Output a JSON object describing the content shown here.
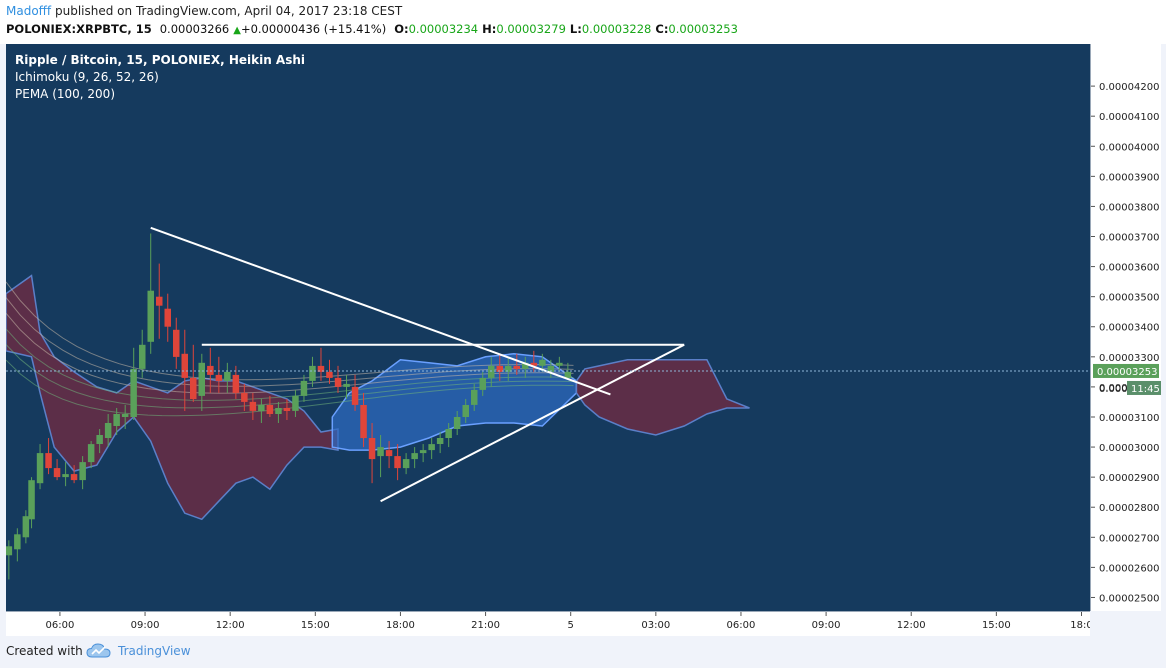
{
  "header": {
    "author": "Madofff",
    "published": "published on TradingView.com, April 04, 2017 23:18 CEST",
    "symbol": "POLONIEX:XRPBTC, 15",
    "last": "0.00003266",
    "arrow": "▲",
    "change": "+0.00000436 (+15.41%)",
    "o_label": "O:",
    "o_value": "0.00003234",
    "h_label": "H:",
    "h_value": "0.00003279",
    "l_label": "L:",
    "l_value": "0.00003228",
    "c_label": "C:",
    "c_value": "0.00003253"
  },
  "legend": {
    "title": "Ripple / Bitcoin, 15, POLONIEX, Heikin Ashi",
    "ichimoku": "Ichimoku (9, 26, 52, 26)",
    "pema": "PEMA (100, 200)"
  },
  "footer": {
    "created": "Created with",
    "brand": "TradingView"
  },
  "colors": {
    "background": "#153a5e",
    "up": "#5aa05a",
    "down": "#e0453a",
    "cloud_bear": "#7a2a3e",
    "cloud_bull": "#2d6cc4",
    "trendline": "#ffffff"
  },
  "chart_data": {
    "type": "candlestick",
    "style": "Heikin Ashi",
    "y_ticks": [
      "0.00004200",
      "0.00004100",
      "0.00004000",
      "0.00003900",
      "0.00003800",
      "0.00003700",
      "0.00003600",
      "0.00003500",
      "0.00003400",
      "0.00003300",
      "0.00003200",
      "0.00003100",
      "0.00003000",
      "0.00002900",
      "0.00002800",
      "0.00002700",
      "0.00002600",
      "0.00002500"
    ],
    "y_tick_values": [
      4.2e-05,
      4.1e-05,
      4e-05,
      3.9e-05,
      3.8e-05,
      3.7e-05,
      3.6e-05,
      3.5e-05,
      3.4e-05,
      3.3e-05,
      3.2e-05,
      3.1e-05,
      3e-05,
      2.9e-05,
      2.8e-05,
      2.7e-05,
      2.6e-05,
      2.5e-05
    ],
    "current_price_label": "0.00003253",
    "current_price": 3.253e-05,
    "countdown_prefix": "0.000",
    "countdown": "11:45",
    "x_ticks": [
      "06:00",
      "09:00",
      "12:00",
      "15:00",
      "18:00",
      "21:00",
      "5",
      "03:00",
      "06:00",
      "09:00",
      "12:00",
      "15:00",
      "18:0"
    ],
    "x_tick_hours": [
      6,
      9,
      12,
      15,
      18,
      21,
      24,
      27,
      30,
      33,
      36,
      39,
      42
    ],
    "x_range_hours": [
      4.1,
      42.3
    ],
    "y_range": [
      2.455e-05,
      4.34e-05
    ],
    "candles": [
      {
        "t": 4.2,
        "o": 2.64e-05,
        "h": 2.69e-05,
        "l": 2.56e-05,
        "c": 2.67e-05
      },
      {
        "t": 4.5,
        "o": 2.66e-05,
        "h": 2.73e-05,
        "l": 2.62e-05,
        "c": 2.71e-05
      },
      {
        "t": 4.8,
        "o": 2.7e-05,
        "h": 2.79e-05,
        "l": 2.68e-05,
        "c": 2.77e-05
      },
      {
        "t": 5.0,
        "o": 2.76e-05,
        "h": 2.9e-05,
        "l": 2.73e-05,
        "c": 2.89e-05
      },
      {
        "t": 5.3,
        "o": 2.88e-05,
        "h": 3.01e-05,
        "l": 2.86e-05,
        "c": 2.98e-05
      },
      {
        "t": 5.6,
        "o": 2.98e-05,
        "h": 3.03e-05,
        "l": 2.91e-05,
        "c": 2.93e-05
      },
      {
        "t": 5.9,
        "o": 2.93e-05,
        "h": 2.96e-05,
        "l": 2.89e-05,
        "c": 2.9e-05
      },
      {
        "t": 6.2,
        "o": 2.9e-05,
        "h": 2.95e-05,
        "l": 2.87e-05,
        "c": 2.91e-05
      },
      {
        "t": 6.5,
        "o": 2.91e-05,
        "h": 2.94e-05,
        "l": 2.88e-05,
        "c": 2.89e-05
      },
      {
        "t": 6.8,
        "o": 2.89e-05,
        "h": 2.97e-05,
        "l": 2.86e-05,
        "c": 2.95e-05
      },
      {
        "t": 7.1,
        "o": 2.95e-05,
        "h": 3.02e-05,
        "l": 2.93e-05,
        "c": 3.01e-05
      },
      {
        "t": 7.4,
        "o": 3.01e-05,
        "h": 3.06e-05,
        "l": 2.98e-05,
        "c": 3.04e-05
      },
      {
        "t": 7.7,
        "o": 3.03e-05,
        "h": 3.11e-05,
        "l": 3e-05,
        "c": 3.08e-05
      },
      {
        "t": 8.0,
        "o": 3.07e-05,
        "h": 3.13e-05,
        "l": 3.04e-05,
        "c": 3.11e-05
      },
      {
        "t": 8.3,
        "o": 3.1e-05,
        "h": 3.14e-05,
        "l": 3.06e-05,
        "c": 3.11e-05
      },
      {
        "t": 8.6,
        "o": 3.1e-05,
        "h": 3.33e-05,
        "l": 3.09e-05,
        "c": 3.26e-05
      },
      {
        "t": 8.9,
        "o": 3.26e-05,
        "h": 3.39e-05,
        "l": 3.23e-05,
        "c": 3.34e-05
      },
      {
        "t": 9.2,
        "o": 3.35e-05,
        "h": 3.71e-05,
        "l": 3.31e-05,
        "c": 3.52e-05
      },
      {
        "t": 9.5,
        "o": 3.5e-05,
        "h": 3.61e-05,
        "l": 3.36e-05,
        "c": 3.47e-05
      },
      {
        "t": 9.8,
        "o": 3.46e-05,
        "h": 3.51e-05,
        "l": 3.35e-05,
        "c": 3.4e-05
      },
      {
        "t": 10.1,
        "o": 3.39e-05,
        "h": 3.43e-05,
        "l": 3.26e-05,
        "c": 3.3e-05
      },
      {
        "t": 10.4,
        "o": 3.31e-05,
        "h": 3.39e-05,
        "l": 3.12e-05,
        "c": 3.23e-05
      },
      {
        "t": 10.7,
        "o": 3.23e-05,
        "h": 3.34e-05,
        "l": 3.15e-05,
        "c": 3.16e-05
      },
      {
        "t": 11.0,
        "o": 3.17e-05,
        "h": 3.31e-05,
        "l": 3.12e-05,
        "c": 3.28e-05
      },
      {
        "t": 11.3,
        "o": 3.27e-05,
        "h": 3.33e-05,
        "l": 3.18e-05,
        "c": 3.24e-05
      },
      {
        "t": 11.6,
        "o": 3.24e-05,
        "h": 3.3e-05,
        "l": 3.18e-05,
        "c": 3.22e-05
      },
      {
        "t": 11.9,
        "o": 3.22e-05,
        "h": 3.28e-05,
        "l": 3.18e-05,
        "c": 3.25e-05
      },
      {
        "t": 12.2,
        "o": 3.24e-05,
        "h": 3.27e-05,
        "l": 3.16e-05,
        "c": 3.18e-05
      },
      {
        "t": 12.5,
        "o": 3.18e-05,
        "h": 3.21e-05,
        "l": 3.12e-05,
        "c": 3.15e-05
      },
      {
        "t": 12.8,
        "o": 3.15e-05,
        "h": 3.18e-05,
        "l": 3.09e-05,
        "c": 3.12e-05
      },
      {
        "t": 13.1,
        "o": 3.12e-05,
        "h": 3.16e-05,
        "l": 3.08e-05,
        "c": 3.14e-05
      },
      {
        "t": 13.4,
        "o": 3.14e-05,
        "h": 3.17e-05,
        "l": 3.1e-05,
        "c": 3.11e-05
      },
      {
        "t": 13.7,
        "o": 3.11e-05,
        "h": 3.15e-05,
        "l": 3.08e-05,
        "c": 3.13e-05
      },
      {
        "t": 14.0,
        "o": 3.13e-05,
        "h": 3.16e-05,
        "l": 3.09e-05,
        "c": 3.12e-05
      },
      {
        "t": 14.3,
        "o": 3.12e-05,
        "h": 3.19e-05,
        "l": 3.1e-05,
        "c": 3.17e-05
      },
      {
        "t": 14.6,
        "o": 3.17e-05,
        "h": 3.24e-05,
        "l": 3.15e-05,
        "c": 3.22e-05
      },
      {
        "t": 14.9,
        "o": 3.22e-05,
        "h": 3.3e-05,
        "l": 3.2e-05,
        "c": 3.27e-05
      },
      {
        "t": 15.2,
        "o": 3.27e-05,
        "h": 3.33e-05,
        "l": 3.22e-05,
        "c": 3.25e-05
      },
      {
        "t": 15.5,
        "o": 3.25e-05,
        "h": 3.29e-05,
        "l": 3.21e-05,
        "c": 3.23e-05
      },
      {
        "t": 15.8,
        "o": 3.23e-05,
        "h": 3.27e-05,
        "l": 3.18e-05,
        "c": 3.2e-05
      },
      {
        "t": 16.1,
        "o": 3.2e-05,
        "h": 3.24e-05,
        "l": 3.16e-05,
        "c": 3.21e-05
      },
      {
        "t": 16.4,
        "o": 3.2e-05,
        "h": 3.24e-05,
        "l": 3.12e-05,
        "c": 3.14e-05
      },
      {
        "t": 16.7,
        "o": 3.14e-05,
        "h": 3.18e-05,
        "l": 3e-05,
        "c": 3.03e-05
      },
      {
        "t": 17.0,
        "o": 3.03e-05,
        "h": 3.08e-05,
        "l": 2.88e-05,
        "c": 2.96e-05
      },
      {
        "t": 17.3,
        "o": 2.97e-05,
        "h": 3.04e-05,
        "l": 2.9e-05,
        "c": 3e-05
      },
      {
        "t": 17.6,
        "o": 2.99e-05,
        "h": 3.02e-05,
        "l": 2.93e-05,
        "c": 2.97e-05
      },
      {
        "t": 17.9,
        "o": 2.97e-05,
        "h": 3.01e-05,
        "l": 2.89e-05,
        "c": 2.93e-05
      },
      {
        "t": 18.2,
        "o": 2.93e-05,
        "h": 2.98e-05,
        "l": 2.91e-05,
        "c": 2.96e-05
      },
      {
        "t": 18.5,
        "o": 2.96e-05,
        "h": 3e-05,
        "l": 2.93e-05,
        "c": 2.98e-05
      },
      {
        "t": 18.8,
        "o": 2.98e-05,
        "h": 3.01e-05,
        "l": 2.95e-05,
        "c": 2.99e-05
      },
      {
        "t": 19.1,
        "o": 2.99e-05,
        "h": 3.03e-05,
        "l": 2.96e-05,
        "c": 3.01e-05
      },
      {
        "t": 19.4,
        "o": 3.01e-05,
        "h": 3.05e-05,
        "l": 2.98e-05,
        "c": 3.03e-05
      },
      {
        "t": 19.7,
        "o": 3.03e-05,
        "h": 3.08e-05,
        "l": 3e-05,
        "c": 3.06e-05
      },
      {
        "t": 20.0,
        "o": 3.06e-05,
        "h": 3.12e-05,
        "l": 3.04e-05,
        "c": 3.1e-05
      },
      {
        "t": 20.3,
        "o": 3.1e-05,
        "h": 3.16e-05,
        "l": 3.08e-05,
        "c": 3.14e-05
      },
      {
        "t": 20.6,
        "o": 3.14e-05,
        "h": 3.21e-05,
        "l": 3.12e-05,
        "c": 3.19e-05
      },
      {
        "t": 20.9,
        "o": 3.19e-05,
        "h": 3.25e-05,
        "l": 3.17e-05,
        "c": 3.23e-05
      },
      {
        "t": 21.2,
        "o": 3.23e-05,
        "h": 3.3e-05,
        "l": 3.2e-05,
        "c": 3.27e-05
      },
      {
        "t": 21.5,
        "o": 3.27e-05,
        "h": 3.31e-05,
        "l": 3.22e-05,
        "c": 3.25e-05
      },
      {
        "t": 21.8,
        "o": 3.25e-05,
        "h": 3.3e-05,
        "l": 3.22e-05,
        "c": 3.27e-05
      },
      {
        "t": 22.1,
        "o": 3.27e-05,
        "h": 3.31e-05,
        "l": 3.24e-05,
        "c": 3.26e-05
      },
      {
        "t": 22.4,
        "o": 3.26e-05,
        "h": 3.3e-05,
        "l": 3.23e-05,
        "c": 3.28e-05
      },
      {
        "t": 22.7,
        "o": 3.28e-05,
        "h": 3.32e-05,
        "l": 3.25e-05,
        "c": 3.27e-05
      },
      {
        "t": 23.0,
        "o": 3.27e-05,
        "h": 3.31e-05,
        "l": 3.25e-05,
        "c": 3.29e-05
      },
      {
        "t": 23.3,
        "o": 3.25e-05,
        "h": 3.29e-05,
        "l": 3.23e-05,
        "c": 3.27e-05
      },
      {
        "t": 23.6,
        "o": 3.27e-05,
        "h": 3.3e-05,
        "l": 3.25e-05,
        "c": 3.28e-05
      },
      {
        "t": 23.9,
        "o": 3.23e-05,
        "h": 3.28e-05,
        "l": 3.23e-05,
        "c": 3.25e-05
      }
    ],
    "trendlines": [
      {
        "t1": 9.2,
        "p1": 3.729e-05,
        "t2": 25.4,
        "p2": 3.175e-05
      },
      {
        "t1": 17.3,
        "p1": 2.82e-05,
        "t2": 28.0,
        "p2": 3.34e-05
      },
      {
        "t1": 11.0,
        "p1": 3.34e-05,
        "t2": 28.0,
        "p2": 3.34e-05
      }
    ]
  }
}
